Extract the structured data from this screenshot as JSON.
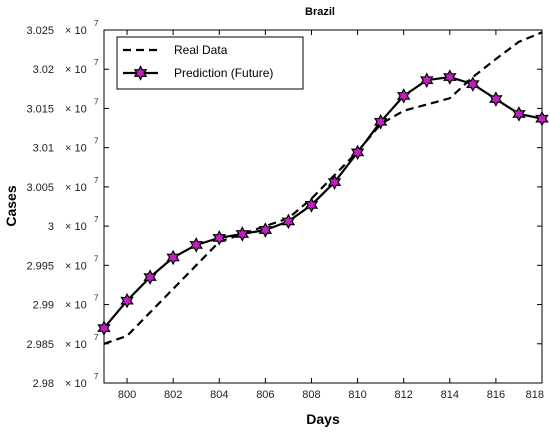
{
  "chart_data": {
    "type": "line",
    "title": "Brazil",
    "xlabel": "Days",
    "ylabel": "Cases",
    "xlim": [
      799,
      818
    ],
    "ylim": [
      29800000,
      30250000
    ],
    "x_ticks": [
      "800",
      "802",
      "804",
      "806",
      "808",
      "810",
      "812",
      "814",
      "816",
      "818"
    ],
    "y_tick_values": [
      29800000,
      29850000,
      29900000,
      29950000,
      30000000,
      30050000,
      30100000,
      30150000,
      30200000,
      30250000
    ],
    "y_ticks": [
      "2.98",
      "2.985",
      "2.99",
      "2.995",
      "3",
      "3.005",
      "3.01",
      "3.015",
      "3.02",
      "3.025"
    ],
    "y_tick_multiplier": "× 10",
    "y_tick_exponent": "7",
    "legend_position": "top-left",
    "grid": false,
    "series": [
      {
        "name": "Real Data",
        "style": "dashed",
        "color": "#000000",
        "x": [
          799,
          800,
          801,
          802,
          803,
          804,
          805,
          806,
          807,
          808,
          809,
          810,
          811,
          812,
          813,
          814,
          815,
          816,
          817,
          818
        ],
        "values": [
          29850000,
          29860000,
          29890000,
          29920000,
          29950000,
          29980000,
          29990000,
          30000000,
          30010000,
          30035000,
          30065000,
          30095000,
          30130000,
          30147000,
          30155000,
          30163000,
          30190000,
          30213000,
          30235000,
          30247000
        ]
      },
      {
        "name": "Prediction (Future)",
        "style": "solid",
        "marker": "hexagram",
        "color": "#000000",
        "marker_fill": "#c020c0",
        "x": [
          799,
          800,
          801,
          802,
          803,
          804,
          805,
          806,
          807,
          808,
          809,
          810,
          811,
          812,
          813,
          814,
          815,
          816,
          817,
          818
        ],
        "values": [
          29870000,
          29905000,
          29935000,
          29960000,
          29976000,
          29985000,
          29990000,
          29995000,
          30006000,
          30027000,
          30056000,
          30094000,
          30133000,
          30166000,
          30186000,
          30190000,
          30181000,
          30162000,
          30143000,
          30137000
        ]
      }
    ]
  }
}
